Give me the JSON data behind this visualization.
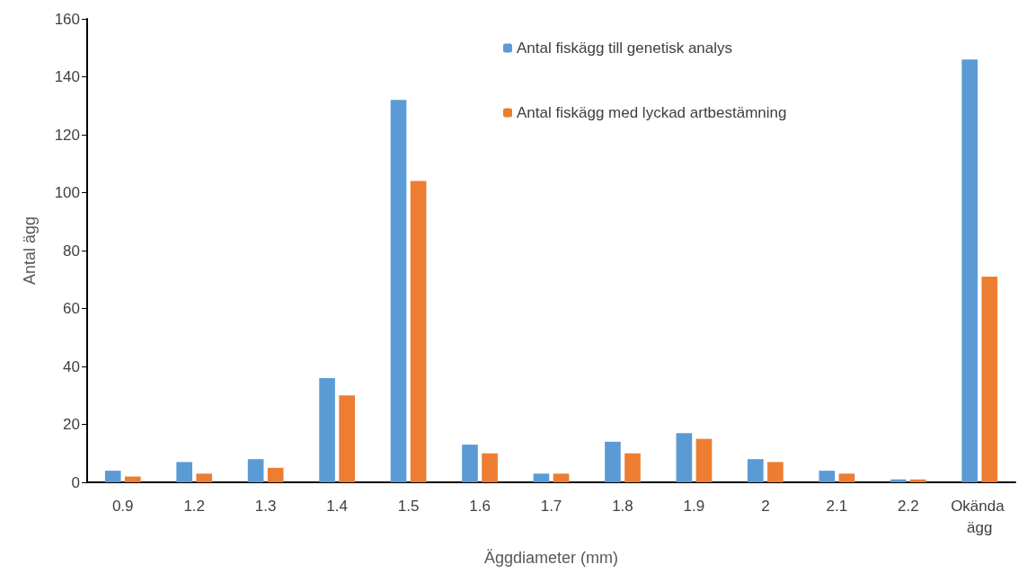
{
  "chart_data": {
    "type": "bar",
    "xlabel": "Äggdiameter (mm)",
    "ylabel": "Antal ägg",
    "categories": [
      "0.9",
      "1.2",
      "1.3",
      "1.4",
      "1.5",
      "1.6",
      "1.7",
      "1.8",
      "1.9",
      "2",
      "2.1",
      "2.2",
      "Okända ägg"
    ],
    "series": [
      {
        "name": "Antal fiskägg till genetisk analys",
        "color": "#5b9bd5",
        "values": [
          4,
          7,
          8,
          36,
          132,
          13,
          3,
          14,
          17,
          8,
          4,
          1,
          146
        ]
      },
      {
        "name": "Antal fiskägg med lyckad artbestämning",
        "color": "#ed7d31",
        "values": [
          2,
          3,
          5,
          30,
          104,
          10,
          3,
          10,
          15,
          7,
          3,
          1,
          71
        ]
      }
    ],
    "ylim": [
      0,
      160
    ],
    "yticks": [
      0,
      20,
      40,
      60,
      80,
      100,
      120,
      140,
      160
    ],
    "grid": false,
    "legend": "top right"
  }
}
